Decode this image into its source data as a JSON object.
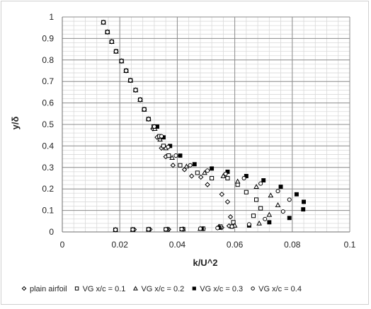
{
  "chart_data": {
    "type": "scatter",
    "xlabel": "k/U^2",
    "ylabel": "y/δ",
    "xlim": [
      0,
      0.1
    ],
    "ylim": [
      0,
      1
    ],
    "xticks": [
      "0",
      "0.02",
      "0.04",
      "0.06",
      "0.08",
      "0.1"
    ],
    "yticks": [
      "0",
      "0.1",
      "0.2",
      "0.3",
      "0.4",
      "0.5",
      "0.6",
      "0.7",
      "0.8",
      "0.9",
      "1"
    ],
    "x_minor": 0.004,
    "y_minor": 0.02,
    "grid": true,
    "legend_position": "bottom",
    "colors": {
      "marker": "#000000",
      "grid_minor": "#d9d9d9",
      "grid_major": "#8c8c8c"
    },
    "series": [
      {
        "name": "plain airfoil",
        "marker": "diamond-open",
        "points": [
          [
            0.0143,
            0.975
          ],
          [
            0.0157,
            0.93
          ],
          [
            0.0172,
            0.885
          ],
          [
            0.0187,
            0.84
          ],
          [
            0.0206,
            0.795
          ],
          [
            0.0222,
            0.75
          ],
          [
            0.0237,
            0.705
          ],
          [
            0.0255,
            0.66
          ],
          [
            0.0271,
            0.615
          ],
          [
            0.0285,
            0.57
          ],
          [
            0.03,
            0.525
          ],
          [
            0.0315,
            0.48
          ],
          [
            0.033,
            0.44
          ],
          [
            0.0345,
            0.39
          ],
          [
            0.036,
            0.35
          ],
          [
            0.0385,
            0.31
          ],
          [
            0.0425,
            0.29
          ],
          [
            0.045,
            0.26
          ],
          [
            0.0482,
            0.255
          ],
          [
            0.0505,
            0.22
          ],
          [
            0.0555,
            0.175
          ],
          [
            0.0575,
            0.14
          ],
          [
            0.0585,
            0.07
          ],
          [
            0.058,
            0.028
          ],
          [
            0.0555,
            0.02
          ],
          [
            0.049,
            0.015
          ],
          [
            0.042,
            0.013
          ],
          [
            0.037,
            0.012
          ],
          [
            0.0305,
            0.012
          ],
          [
            0.025,
            0.011
          ],
          [
            0.0185,
            0.01
          ]
        ]
      },
      {
        "name": "VG x/c = 0.1",
        "marker": "square-open",
        "points": [
          [
            0.0143,
            0.975
          ],
          [
            0.0157,
            0.93
          ],
          [
            0.0172,
            0.885
          ],
          [
            0.0187,
            0.84
          ],
          [
            0.0206,
            0.795
          ],
          [
            0.0222,
            0.75
          ],
          [
            0.0237,
            0.705
          ],
          [
            0.0255,
            0.66
          ],
          [
            0.0271,
            0.615
          ],
          [
            0.0285,
            0.57
          ],
          [
            0.03,
            0.525
          ],
          [
            0.0318,
            0.49
          ],
          [
            0.0338,
            0.445
          ],
          [
            0.0352,
            0.4
          ],
          [
            0.037,
            0.355
          ],
          [
            0.041,
            0.31
          ],
          [
            0.047,
            0.275
          ],
          [
            0.052,
            0.25
          ],
          [
            0.0575,
            0.25
          ],
          [
            0.061,
            0.22
          ],
          [
            0.064,
            0.185
          ],
          [
            0.0675,
            0.15
          ],
          [
            0.069,
            0.11
          ],
          [
            0.0665,
            0.075
          ],
          [
            0.0595,
            0.045
          ],
          [
            0.055,
            0.025
          ],
          [
            0.049,
            0.015
          ],
          [
            0.042,
            0.013
          ],
          [
            0.0365,
            0.012
          ],
          [
            0.03,
            0.012
          ],
          [
            0.0245,
            0.011
          ],
          [
            0.0185,
            0.01
          ]
        ]
      },
      {
        "name": "VG x/c = 0.2",
        "marker": "triangle-open",
        "points": [
          [
            0.0143,
            0.975
          ],
          [
            0.0157,
            0.93
          ],
          [
            0.0172,
            0.885
          ],
          [
            0.0187,
            0.84
          ],
          [
            0.0206,
            0.795
          ],
          [
            0.0222,
            0.75
          ],
          [
            0.0237,
            0.705
          ],
          [
            0.0255,
            0.66
          ],
          [
            0.0271,
            0.615
          ],
          [
            0.0285,
            0.57
          ],
          [
            0.03,
            0.525
          ],
          [
            0.0322,
            0.48
          ],
          [
            0.034,
            0.43
          ],
          [
            0.036,
            0.39
          ],
          [
            0.0382,
            0.345
          ],
          [
            0.0432,
            0.305
          ],
          [
            0.0495,
            0.275
          ],
          [
            0.056,
            0.26
          ],
          [
            0.061,
            0.235
          ],
          [
            0.0675,
            0.21
          ],
          [
            0.0725,
            0.17
          ],
          [
            0.075,
            0.125
          ],
          [
            0.072,
            0.08
          ],
          [
            0.0685,
            0.04
          ],
          [
            0.06,
            0.03
          ],
          [
            0.0545,
            0.025
          ],
          [
            0.048,
            0.015
          ],
          [
            0.042,
            0.013
          ],
          [
            0.0365,
            0.012
          ],
          [
            0.03,
            0.012
          ],
          [
            0.0245,
            0.011
          ],
          [
            0.0185,
            0.01
          ]
        ]
      },
      {
        "name": "VG x/c = 0.3",
        "marker": "square-filled",
        "points": [
          [
            0.0143,
            0.975
          ],
          [
            0.0157,
            0.93
          ],
          [
            0.0172,
            0.885
          ],
          [
            0.0187,
            0.84
          ],
          [
            0.0206,
            0.795
          ],
          [
            0.0222,
            0.75
          ],
          [
            0.0237,
            0.705
          ],
          [
            0.0255,
            0.66
          ],
          [
            0.0271,
            0.615
          ],
          [
            0.0285,
            0.57
          ],
          [
            0.03,
            0.525
          ],
          [
            0.033,
            0.49
          ],
          [
            0.0352,
            0.44
          ],
          [
            0.0375,
            0.4
          ],
          [
            0.041,
            0.355
          ],
          [
            0.046,
            0.315
          ],
          [
            0.052,
            0.295
          ],
          [
            0.0575,
            0.28
          ],
          [
            0.064,
            0.26
          ],
          [
            0.07,
            0.24
          ],
          [
            0.076,
            0.21
          ],
          [
            0.0815,
            0.175
          ],
          [
            0.084,
            0.14
          ],
          [
            0.0838,
            0.105
          ],
          [
            0.079,
            0.065
          ],
          [
            0.072,
            0.045
          ],
          [
            0.065,
            0.03
          ],
          [
            0.059,
            0.025
          ],
          [
            0.0545,
            0.02
          ],
          [
            0.0485,
            0.015
          ],
          [
            0.0415,
            0.013
          ],
          [
            0.036,
            0.012
          ],
          [
            0.03,
            0.012
          ],
          [
            0.0245,
            0.011
          ],
          [
            0.0185,
            0.01
          ]
        ]
      },
      {
        "name": "VG x/c = 0.4",
        "marker": "circle-open",
        "points": [
          [
            0.0143,
            0.975
          ],
          [
            0.0157,
            0.93
          ],
          [
            0.0172,
            0.885
          ],
          [
            0.0187,
            0.84
          ],
          [
            0.0206,
            0.795
          ],
          [
            0.0222,
            0.75
          ],
          [
            0.0237,
            0.705
          ],
          [
            0.0255,
            0.66
          ],
          [
            0.0271,
            0.615
          ],
          [
            0.0285,
            0.57
          ],
          [
            0.03,
            0.525
          ],
          [
            0.032,
            0.49
          ],
          [
            0.0345,
            0.445
          ],
          [
            0.0368,
            0.395
          ],
          [
            0.0395,
            0.355
          ],
          [
            0.0445,
            0.31
          ],
          [
            0.0505,
            0.285
          ],
          [
            0.0568,
            0.27
          ],
          [
            0.0632,
            0.25
          ],
          [
            0.069,
            0.225
          ],
          [
            0.075,
            0.19
          ],
          [
            0.079,
            0.15
          ],
          [
            0.0768,
            0.095
          ],
          [
            0.0705,
            0.06
          ],
          [
            0.065,
            0.035
          ],
          [
            0.059,
            0.025
          ],
          [
            0.054,
            0.018
          ],
          [
            0.048,
            0.015
          ],
          [
            0.0415,
            0.013
          ],
          [
            0.036,
            0.012
          ],
          [
            0.03,
            0.012
          ],
          [
            0.0245,
            0.011
          ],
          [
            0.0185,
            0.01
          ]
        ]
      }
    ]
  }
}
